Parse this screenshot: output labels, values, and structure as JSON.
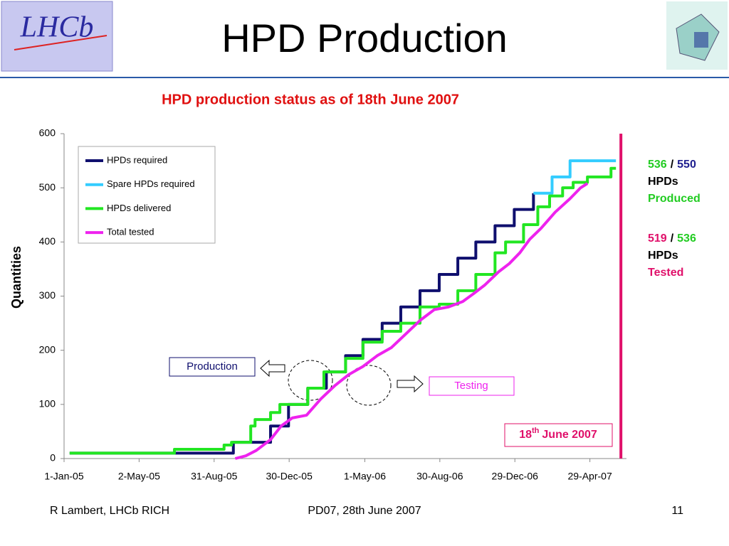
{
  "header": {
    "title": "HPD Production",
    "logo_text": "LHCb"
  },
  "chart_data": {
    "type": "line",
    "title": "HPD production status as of 18th June 2007",
    "ylabel": "Quantities",
    "xlim": [
      "2005-01-01",
      "2007-06-27"
    ],
    "xticks": [
      {
        "value": "2005-01-01",
        "label": "1-Jan-05"
      },
      {
        "value": "2005-05-02",
        "label": "2-May-05"
      },
      {
        "value": "2005-08-31",
        "label": "31-Aug-05"
      },
      {
        "value": "2005-12-30",
        "label": "30-Dec-05"
      },
      {
        "value": "2006-05-01",
        "label": "1-May-06"
      },
      {
        "value": "2006-08-30",
        "label": "30-Aug-06"
      },
      {
        "value": "2006-12-29",
        "label": "29-Dec-06"
      },
      {
        "value": "2007-04-29",
        "label": "29-Apr-07"
      }
    ],
    "ylim": [
      0,
      600
    ],
    "yticks": [
      0,
      100,
      200,
      300,
      400,
      500,
      600
    ],
    "legend": "upper left",
    "series": [
      {
        "name": "HPDs required",
        "color": "#0f0f6e",
        "step": true,
        "x": [
          "2005-01-10",
          "2005-10-01",
          "2005-11-30",
          "2005-12-29",
          "2006-01-29",
          "2006-02-28",
          "2006-03-31",
          "2006-04-28",
          "2006-05-29",
          "2006-06-28",
          "2006-07-29",
          "2006-08-29",
          "2006-09-28",
          "2006-10-27",
          "2006-11-27",
          "2006-12-28",
          "2007-01-28"
        ],
        "values": [
          10,
          30,
          60,
          100,
          130,
          160,
          190,
          220,
          250,
          280,
          310,
          340,
          370,
          400,
          430,
          460,
          490
        ]
      },
      {
        "name": "Spare HPDs required",
        "color": "#33ccff",
        "step": true,
        "x": [
          "2007-01-28",
          "2007-02-27",
          "2007-03-28",
          "2007-06-10"
        ],
        "values": [
          490,
          520,
          550,
          550
        ]
      },
      {
        "name": "HPDs delivered",
        "color": "#22e622",
        "step": true,
        "x": [
          "2005-01-10",
          "2005-06-28",
          "2005-09-16",
          "2005-09-28",
          "2005-10-29",
          "2005-11-05",
          "2005-11-30",
          "2005-12-15",
          "2006-01-29",
          "2006-02-24",
          "2006-03-31",
          "2006-04-28",
          "2006-05-29",
          "2006-06-28",
          "2006-07-29",
          "2006-08-29",
          "2006-09-28",
          "2006-10-27",
          "2006-11-27",
          "2006-12-14",
          "2007-01-12",
          "2007-02-04",
          "2007-02-23",
          "2007-03-16",
          "2007-04-02",
          "2007-04-25",
          "2007-06-02",
          "2007-06-10"
        ],
        "values": [
          10,
          17,
          25,
          30,
          60,
          72,
          85,
          100,
          130,
          160,
          185,
          215,
          235,
          250,
          280,
          285,
          310,
          340,
          380,
          400,
          432,
          465,
          485,
          500,
          510,
          520,
          536,
          536
        ]
      },
      {
        "name": "Total tested",
        "color": "#ee22ee",
        "step": false,
        "x": [
          "2005-10-04",
          "2005-10-21",
          "2005-11-07",
          "2005-11-30",
          "2005-12-17",
          "2006-01-04",
          "2006-01-27",
          "2006-02-19",
          "2006-03-14",
          "2006-04-05",
          "2006-04-28",
          "2006-05-21",
          "2006-06-13",
          "2006-07-06",
          "2006-07-29",
          "2006-08-21",
          "2006-09-13",
          "2006-10-06",
          "2006-10-24",
          "2006-11-10",
          "2006-12-03",
          "2006-12-20",
          "2007-01-06",
          "2007-01-22",
          "2007-02-09",
          "2007-03-04",
          "2007-03-28",
          "2007-04-14",
          "2007-04-25"
        ],
        "values": [
          0,
          5,
          15,
          35,
          60,
          75,
          80,
          110,
          135,
          155,
          170,
          190,
          205,
          230,
          255,
          275,
          280,
          290,
          305,
          320,
          345,
          360,
          380,
          405,
          425,
          455,
          480,
          500,
          508
        ]
      }
    ],
    "marker": {
      "x": "2007-06-18",
      "day": "18",
      "suffix": "th",
      "rest": "June 2007",
      "color": "#e0106a"
    },
    "annotations": [
      "Production",
      "Testing"
    ],
    "status": [
      [
        [
          {
            "text": "536",
            "color": "#22cc22"
          },
          {
            "text": "/",
            "color": "#000000"
          },
          {
            "text": "550",
            "color": "#1f1f8f"
          }
        ],
        [
          {
            "text": "HPDs",
            "color": "#000000"
          }
        ],
        [
          {
            "text": "Produced",
            "color": "#22cc22"
          }
        ]
      ],
      [
        [
          {
            "text": "519",
            "color": "#e0106a"
          },
          {
            "text": "/",
            "color": "#000000"
          },
          {
            "text": "536",
            "color": "#22cc22"
          }
        ],
        [
          {
            "text": "HPDs",
            "color": "#000000"
          }
        ],
        [
          {
            "text": "Tested",
            "color": "#e0106a"
          }
        ]
      ]
    ]
  },
  "footer": {
    "left": "R Lambert, LHCb RICH",
    "center": "PD07, 28th June 2007",
    "right": "11"
  }
}
